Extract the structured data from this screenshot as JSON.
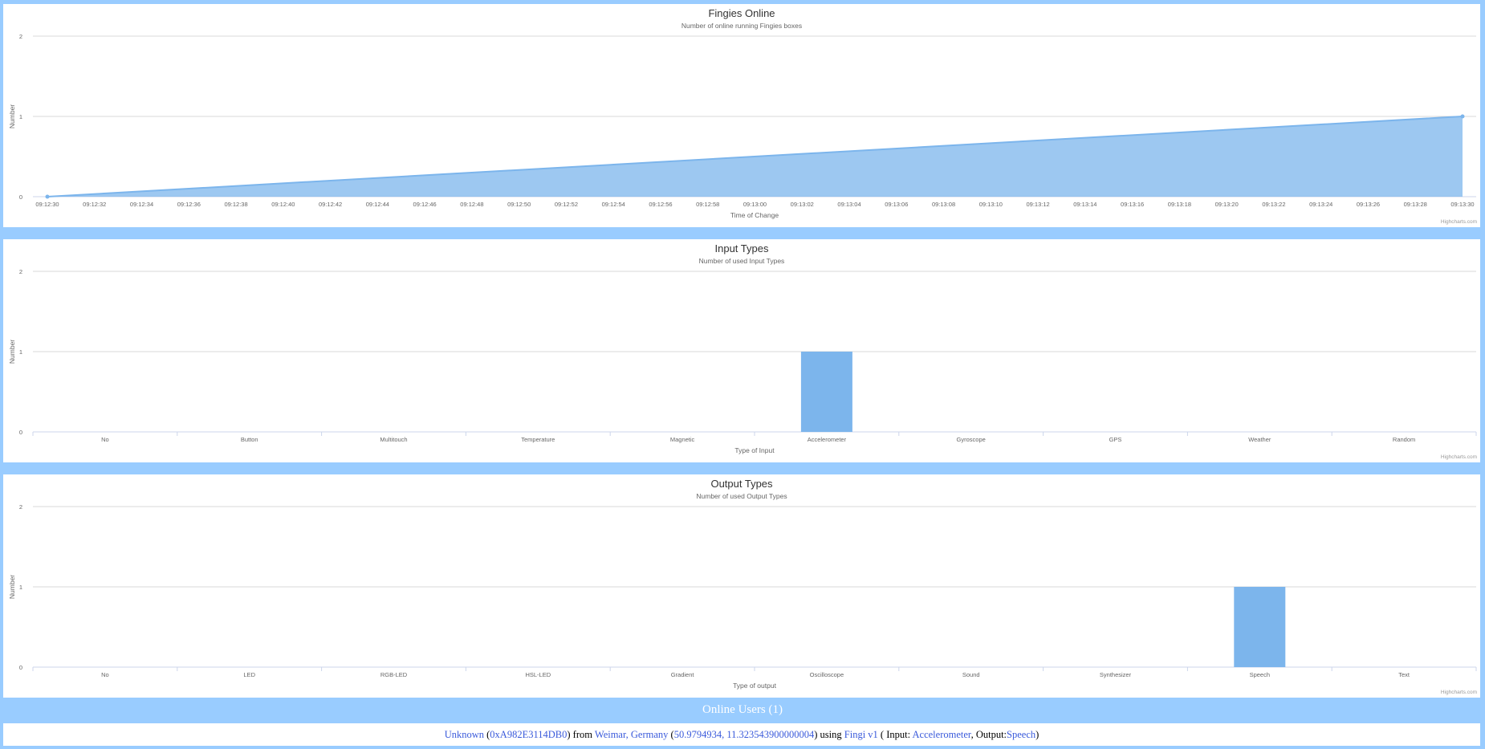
{
  "colors": {
    "page_bg": "#99ccff",
    "series": "#7cb5ec",
    "link": "#3b5bdb"
  },
  "chart_data": [
    {
      "type": "area",
      "title": "Fingies Online",
      "subtitle": "Number of online running Fingies boxes",
      "xlabel": "Time of Change",
      "ylabel": "Number",
      "ylim": [
        0,
        2
      ],
      "yticks": [
        "0",
        "1",
        "2"
      ],
      "x": [
        "09:12:30",
        "09:13:30"
      ],
      "values": [
        0,
        1
      ],
      "xticks": [
        "09:12:30",
        "09:12:32",
        "09:12:34",
        "09:12:36",
        "09:12:38",
        "09:12:40",
        "09:12:42",
        "09:12:44",
        "09:12:46",
        "09:12:48",
        "09:12:50",
        "09:12:52",
        "09:12:54",
        "09:12:56",
        "09:12:58",
        "09:13:00",
        "09:13:02",
        "09:13:04",
        "09:13:06",
        "09:13:08",
        "09:13:10",
        "09:13:12",
        "09:13:14",
        "09:13:16",
        "09:13:18",
        "09:13:20",
        "09:13:22",
        "09:13:24",
        "09:13:26",
        "09:13:28",
        "09:13:30"
      ],
      "grid": true,
      "credits": "Highcharts.com"
    },
    {
      "type": "bar",
      "title": "Input Types",
      "subtitle": "Number of used Input Types",
      "xlabel": "Type of Input",
      "ylabel": "Number",
      "ylim": [
        0,
        2
      ],
      "yticks": [
        "0",
        "1",
        "2"
      ],
      "categories": [
        "No",
        "Button",
        "Multitouch",
        "Temperature",
        "Magnetic",
        "Accelerometer",
        "Gyroscope",
        "GPS",
        "Weather",
        "Random"
      ],
      "values": [
        0,
        0,
        0,
        0,
        0,
        1,
        0,
        0,
        0,
        0
      ],
      "grid": true,
      "credits": "Highcharts.com"
    },
    {
      "type": "bar",
      "title": "Output Types",
      "subtitle": "Number of used Output Types",
      "xlabel": "Type of output",
      "ylabel": "Number",
      "ylim": [
        0,
        2
      ],
      "yticks": [
        "0",
        "1",
        "2"
      ],
      "categories": [
        "No",
        "LED",
        "RGB-LED",
        "HSL-LED",
        "Gradient",
        "Oscilloscope",
        "Sound",
        "Synthesizer",
        "Speech",
        "Text"
      ],
      "values": [
        0,
        0,
        0,
        0,
        0,
        0,
        0,
        0,
        1,
        0
      ],
      "grid": true,
      "credits": "Highcharts.com"
    }
  ],
  "online_users": {
    "header": "Online Users (1)",
    "user": {
      "name": "Unknown",
      "id": "0xA982E3114DB0",
      "from_label": "from",
      "location": "Weimar, Germany",
      "coords": "50.9794934, 11.323543900000004",
      "using_label": "using",
      "device": "Fingi v1",
      "input_label": "Input:",
      "input": "Accelerometer",
      "output_label": "Output:",
      "output": "Speech"
    }
  }
}
